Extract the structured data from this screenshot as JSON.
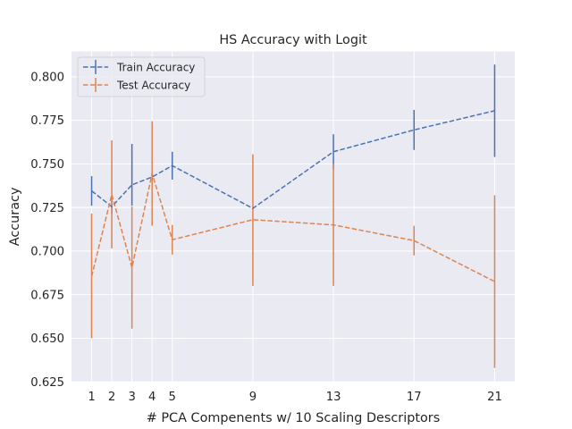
{
  "chart_data": {
    "type": "line",
    "title": "HS Accuracy with Logit",
    "xlabel": "# PCA Compenents w/ 10 Scaling Descriptors",
    "ylabel": "Accuracy",
    "x": [
      1,
      2,
      3,
      4,
      5,
      9,
      13,
      17,
      21
    ],
    "x_ticks": [
      1,
      2,
      3,
      4,
      5,
      9,
      13,
      17,
      21
    ],
    "y_ticks": [
      0.625,
      0.65,
      0.675,
      0.7,
      0.725,
      0.75,
      0.775,
      0.8
    ],
    "y_tick_labels": [
      "0.625",
      "0.650",
      "0.675",
      "0.700",
      "0.725",
      "0.750",
      "0.775",
      "0.800"
    ],
    "xlim": [
      0,
      22
    ],
    "ylim": [
      0.625,
      0.8145
    ],
    "grid": true,
    "legend_position": "top-left",
    "series": [
      {
        "name": "Train Accuracy",
        "color": "#4c72b0",
        "values": [
          0.7345,
          0.7255,
          0.738,
          0.7425,
          0.749,
          0.7245,
          0.757,
          0.7695,
          0.7805
        ],
        "err_low": [
          0.726,
          0.7215,
          0.726,
          0.741,
          0.741,
          0.7245,
          0.747,
          0.758,
          0.754
        ],
        "err_high": [
          0.743,
          0.7295,
          0.7615,
          0.744,
          0.757,
          0.7245,
          0.767,
          0.781,
          0.807
        ]
      },
      {
        "name": "Test Accuracy",
        "color": "#dd8452",
        "values": [
          0.6855,
          0.7325,
          0.6905,
          0.7445,
          0.7065,
          0.718,
          0.715,
          0.706,
          0.6825
        ],
        "err_low": [
          0.65,
          0.7015,
          0.6555,
          0.7145,
          0.698,
          0.68,
          0.68,
          0.6975,
          0.633
        ],
        "err_high": [
          0.7215,
          0.7635,
          0.7255,
          0.7745,
          0.715,
          0.7555,
          0.75,
          0.7145,
          0.732
        ]
      }
    ]
  }
}
